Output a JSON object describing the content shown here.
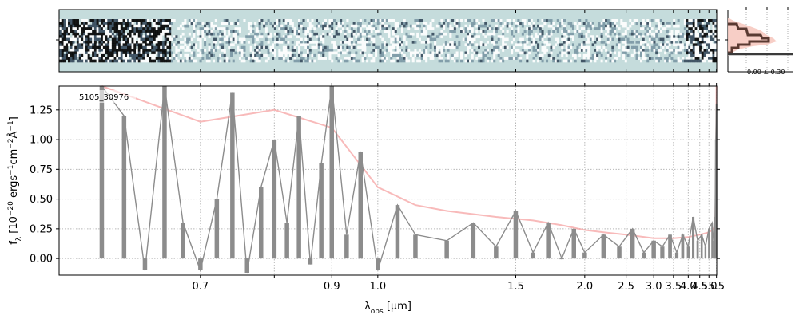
{
  "chart_data": [
    {
      "type": "heatmap",
      "panel": "2d-spectrum",
      "x": {
        "min": 0.0,
        "max": 1.0
      },
      "y": {
        "min": 0.0,
        "max": 1.0
      },
      "background_color": "#c5dcdc",
      "cmap": [
        "#ffffff",
        "#c5dcdc",
        "#7a97a4",
        "#34485a",
        "#000000"
      ]
    },
    {
      "type": "line",
      "panel": "spatial-profile",
      "annotation": "0.00 ± 0.30",
      "colors": {
        "profile": "#5a3a32",
        "fill": "#f6c9c0"
      }
    },
    {
      "type": "line",
      "panel": "1d-spectrum",
      "label": "5105_30976",
      "xlabel_html": "λ<tspan baseline-shift='sub' font-size='9'>obs</tspan> [μm]",
      "ylabel_html": "f<tspan baseline-shift='sub' font-size='9'>λ</tspan> [10<tspan baseline-shift='super' font-size='9'>−20</tspan> ergs<tspan baseline-shift='super' font-size='9'>−1</tspan>cm<tspan baseline-shift='super' font-size='9'>−2</tspan>Å<tspan baseline-shift='super' font-size='9'>−1</tspan>]",
      "xscale": "reciprocal",
      "xlim": [
        0.565,
        5.52
      ],
      "ylim": [
        -0.14,
        1.45
      ],
      "xticks": [
        0.7,
        0.8,
        0.9,
        1.0,
        1.5,
        2.0,
        2.5,
        3.0,
        3.5,
        4.0,
        4.5,
        5.0,
        5.5
      ],
      "xtick_labels": [
        "0.7",
        "",
        "0.9",
        "1.0",
        "1.5",
        "2.0",
        "2.5",
        "3.0",
        "3.5",
        "4.0",
        "4.5",
        "5.0",
        "5.5"
      ],
      "yticks": [
        0.0,
        0.25,
        0.5,
        0.75,
        1.0,
        1.25
      ],
      "ytick_labels": [
        "0.00",
        "0.25",
        "0.50",
        "0.75",
        "1.00",
        "1.25"
      ],
      "grid": true,
      "series": [
        {
          "role": "flux",
          "color": "#8c8c8c",
          "x": [
            0.6,
            0.62,
            0.64,
            0.66,
            0.68,
            0.7,
            0.72,
            0.74,
            0.76,
            0.78,
            0.8,
            0.82,
            0.84,
            0.86,
            0.88,
            0.9,
            0.93,
            0.96,
            1.0,
            1.05,
            1.1,
            1.2,
            1.3,
            1.4,
            1.5,
            1.6,
            1.7,
            1.8,
            1.9,
            2.0,
            2.2,
            2.4,
            2.6,
            2.8,
            3.0,
            3.2,
            3.4,
            3.6,
            3.8,
            4.0,
            4.2,
            4.4,
            4.6,
            4.8,
            5.0,
            5.2,
            5.3,
            5.4,
            5.45,
            5.5
          ],
          "y": [
            1.45,
            1.2,
            -0.1,
            1.45,
            0.3,
            -0.1,
            0.5,
            1.4,
            -0.12,
            0.6,
            1.0,
            0.3,
            1.2,
            -0.05,
            0.8,
            1.45,
            0.2,
            0.9,
            -0.1,
            0.45,
            0.2,
            0.15,
            0.3,
            0.1,
            0.4,
            0.05,
            0.3,
            0.0,
            0.25,
            0.05,
            0.2,
            0.1,
            0.25,
            0.05,
            0.15,
            0.1,
            0.2,
            0.05,
            0.2,
            0.1,
            0.35,
            0.15,
            0.2,
            0.1,
            0.25,
            0.3,
            0.15,
            0.35,
            1.0,
            1.3
          ]
        },
        {
          "role": "uncertainty",
          "color": "#f5a3a3",
          "x": [
            0.6,
            0.7,
            0.8,
            0.9,
            1.0,
            1.1,
            1.2,
            1.4,
            1.6,
            1.8,
            2.0,
            2.2,
            2.5,
            3.0,
            3.5,
            4.0,
            4.5,
            5.0,
            5.2,
            5.35,
            5.42,
            5.47,
            5.5
          ],
          "y": [
            1.45,
            1.15,
            1.25,
            1.1,
            0.6,
            0.45,
            0.4,
            0.35,
            0.32,
            0.28,
            0.24,
            0.22,
            0.2,
            0.17,
            0.17,
            0.18,
            0.2,
            0.22,
            0.24,
            0.26,
            0.35,
            0.8,
            1.45
          ]
        }
      ]
    }
  ]
}
